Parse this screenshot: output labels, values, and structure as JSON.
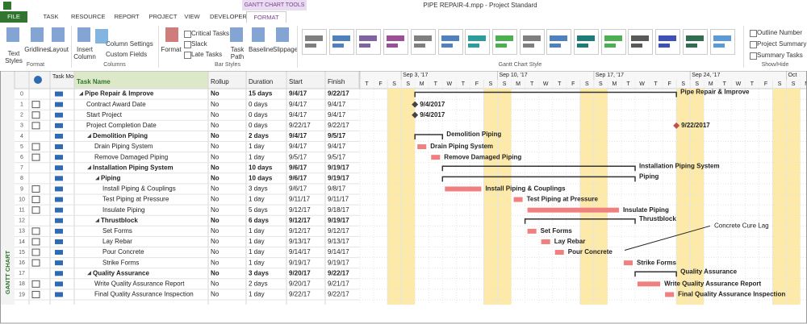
{
  "window": {
    "title": "PIPE REPAIR-4.mpp - Project Standard",
    "context_tab": "GANTT CHART TOOLS"
  },
  "tabs": [
    "FILE",
    "TASK",
    "RESOURCE",
    "REPORT",
    "PROJECT",
    "VIEW",
    "DEVELOPER",
    "FORMAT"
  ],
  "ribbon": {
    "format_buttons": [
      "Text Styles",
      "Gridlines",
      "Layout"
    ],
    "insert_column": "Insert Column",
    "column_settings": "Column Settings",
    "custom_fields": "Custom Fields",
    "bar_format": "Format",
    "checks": [
      "Critical Tasks",
      "Slack",
      "Late Tasks"
    ],
    "task_path": "Task Path",
    "baseline": "Baseline",
    "slippage": "Slippage",
    "show_hide": [
      "Outline Number",
      "Project Summary T",
      "Summary Tasks"
    ],
    "groups": [
      "Format",
      "Columns",
      "Bar Styles",
      "Gantt Chart Style",
      "Show/Hide"
    ]
  },
  "view_label": "GANTT CHART",
  "table": {
    "columns": [
      "Task Mode",
      "Task Name",
      "Rollup",
      "Duration",
      "Start",
      "Finish"
    ],
    "rows": [
      {
        "id": "0",
        "name": "Pipe Repair & Improve",
        "rollup": "No",
        "duration": "15 days",
        "start": "9/4/17",
        "finish": "9/22/17",
        "level": 0,
        "summary": true
      },
      {
        "id": "1",
        "name": "Contract Award Date",
        "rollup": "No",
        "duration": "0 days",
        "start": "9/4/17",
        "finish": "9/4/17",
        "level": 1,
        "summary": false
      },
      {
        "id": "2",
        "name": "Start Project",
        "rollup": "No",
        "duration": "0 days",
        "start": "9/4/17",
        "finish": "9/4/17",
        "level": 1,
        "summary": false
      },
      {
        "id": "3",
        "name": "Project Completion Date",
        "rollup": "No",
        "duration": "0 days",
        "start": "9/22/17",
        "finish": "9/22/17",
        "level": 1,
        "summary": false
      },
      {
        "id": "4",
        "name": "Demolition Piping",
        "rollup": "No",
        "duration": "2 days",
        "start": "9/4/17",
        "finish": "9/5/17",
        "level": 1,
        "summary": true
      },
      {
        "id": "5",
        "name": "Drain Piping System",
        "rollup": "No",
        "duration": "1 day",
        "start": "9/4/17",
        "finish": "9/4/17",
        "level": 2,
        "summary": false
      },
      {
        "id": "6",
        "name": "Remove Damaged Piping",
        "rollup": "No",
        "duration": "1 day",
        "start": "9/5/17",
        "finish": "9/5/17",
        "level": 2,
        "summary": false
      },
      {
        "id": "7",
        "name": "Installation Piping System",
        "rollup": "No",
        "duration": "10 days",
        "start": "9/6/17",
        "finish": "9/19/17",
        "level": 1,
        "summary": true
      },
      {
        "id": "8",
        "name": "Piping",
        "rollup": "No",
        "duration": "10 days",
        "start": "9/6/17",
        "finish": "9/19/17",
        "level": 2,
        "summary": true
      },
      {
        "id": "9",
        "name": "Install Piping & Couplings",
        "rollup": "No",
        "duration": "3 days",
        "start": "9/6/17",
        "finish": "9/8/17",
        "level": 3,
        "summary": false
      },
      {
        "id": "10",
        "name": "Test Piping at Pressure",
        "rollup": "No",
        "duration": "1 day",
        "start": "9/11/17",
        "finish": "9/11/17",
        "level": 3,
        "summary": false
      },
      {
        "id": "11",
        "name": "Insulate Piping",
        "rollup": "No",
        "duration": "5 days",
        "start": "9/12/17",
        "finish": "9/18/17",
        "level": 3,
        "summary": false
      },
      {
        "id": "12",
        "name": "Thrustblock",
        "rollup": "No",
        "duration": "6 days",
        "start": "9/12/17",
        "finish": "9/19/17",
        "level": 2,
        "summary": true
      },
      {
        "id": "13",
        "name": "Set Forms",
        "rollup": "No",
        "duration": "1 day",
        "start": "9/12/17",
        "finish": "9/12/17",
        "level": 3,
        "summary": false
      },
      {
        "id": "14",
        "name": "Lay Rebar",
        "rollup": "No",
        "duration": "1 day",
        "start": "9/13/17",
        "finish": "9/13/17",
        "level": 3,
        "summary": false
      },
      {
        "id": "15",
        "name": "Pour Concrete",
        "rollup": "No",
        "duration": "1 day",
        "start": "9/14/17",
        "finish": "9/14/17",
        "level": 3,
        "summary": false
      },
      {
        "id": "16",
        "name": "Strike Forms",
        "rollup": "No",
        "duration": "1 day",
        "start": "9/19/17",
        "finish": "9/19/17",
        "level": 3,
        "summary": false
      },
      {
        "id": "17",
        "name": "Quality Assurance",
        "rollup": "No",
        "duration": "3 days",
        "start": "9/20/17",
        "finish": "9/22/17",
        "level": 1,
        "summary": true
      },
      {
        "id": "18",
        "name": "Write Quality Assurance Report",
        "rollup": "No",
        "duration": "2 days",
        "start": "9/20/17",
        "finish": "9/21/17",
        "level": 2,
        "summary": false
      },
      {
        "id": "19",
        "name": "Final Quality Assurance Inspection",
        "rollup": "No",
        "duration": "1 day",
        "start": "9/22/17",
        "finish": "9/22/17",
        "level": 2,
        "summary": false
      }
    ]
  },
  "gantt": {
    "weeks": [
      "Sep 3, '17",
      "Sep 10, '17",
      "Sep 17, '17",
      "Sep 24, '17",
      "Oct"
    ],
    "day_letters": [
      "T",
      "F",
      "S",
      "S",
      "M",
      "T",
      "W",
      "T",
      "F",
      "S",
      "S",
      "M",
      "T",
      "W",
      "T",
      "F",
      "S",
      "S",
      "M",
      "T",
      "W",
      "T",
      "F",
      "S",
      "S",
      "M",
      "T",
      "W",
      "T",
      "F",
      "S",
      "S",
      "M"
    ],
    "milestone_labels": [
      "9/4/2017",
      "9/4/2017",
      "9/22/2017"
    ],
    "annotation": "Concrete Cure Lag"
  }
}
